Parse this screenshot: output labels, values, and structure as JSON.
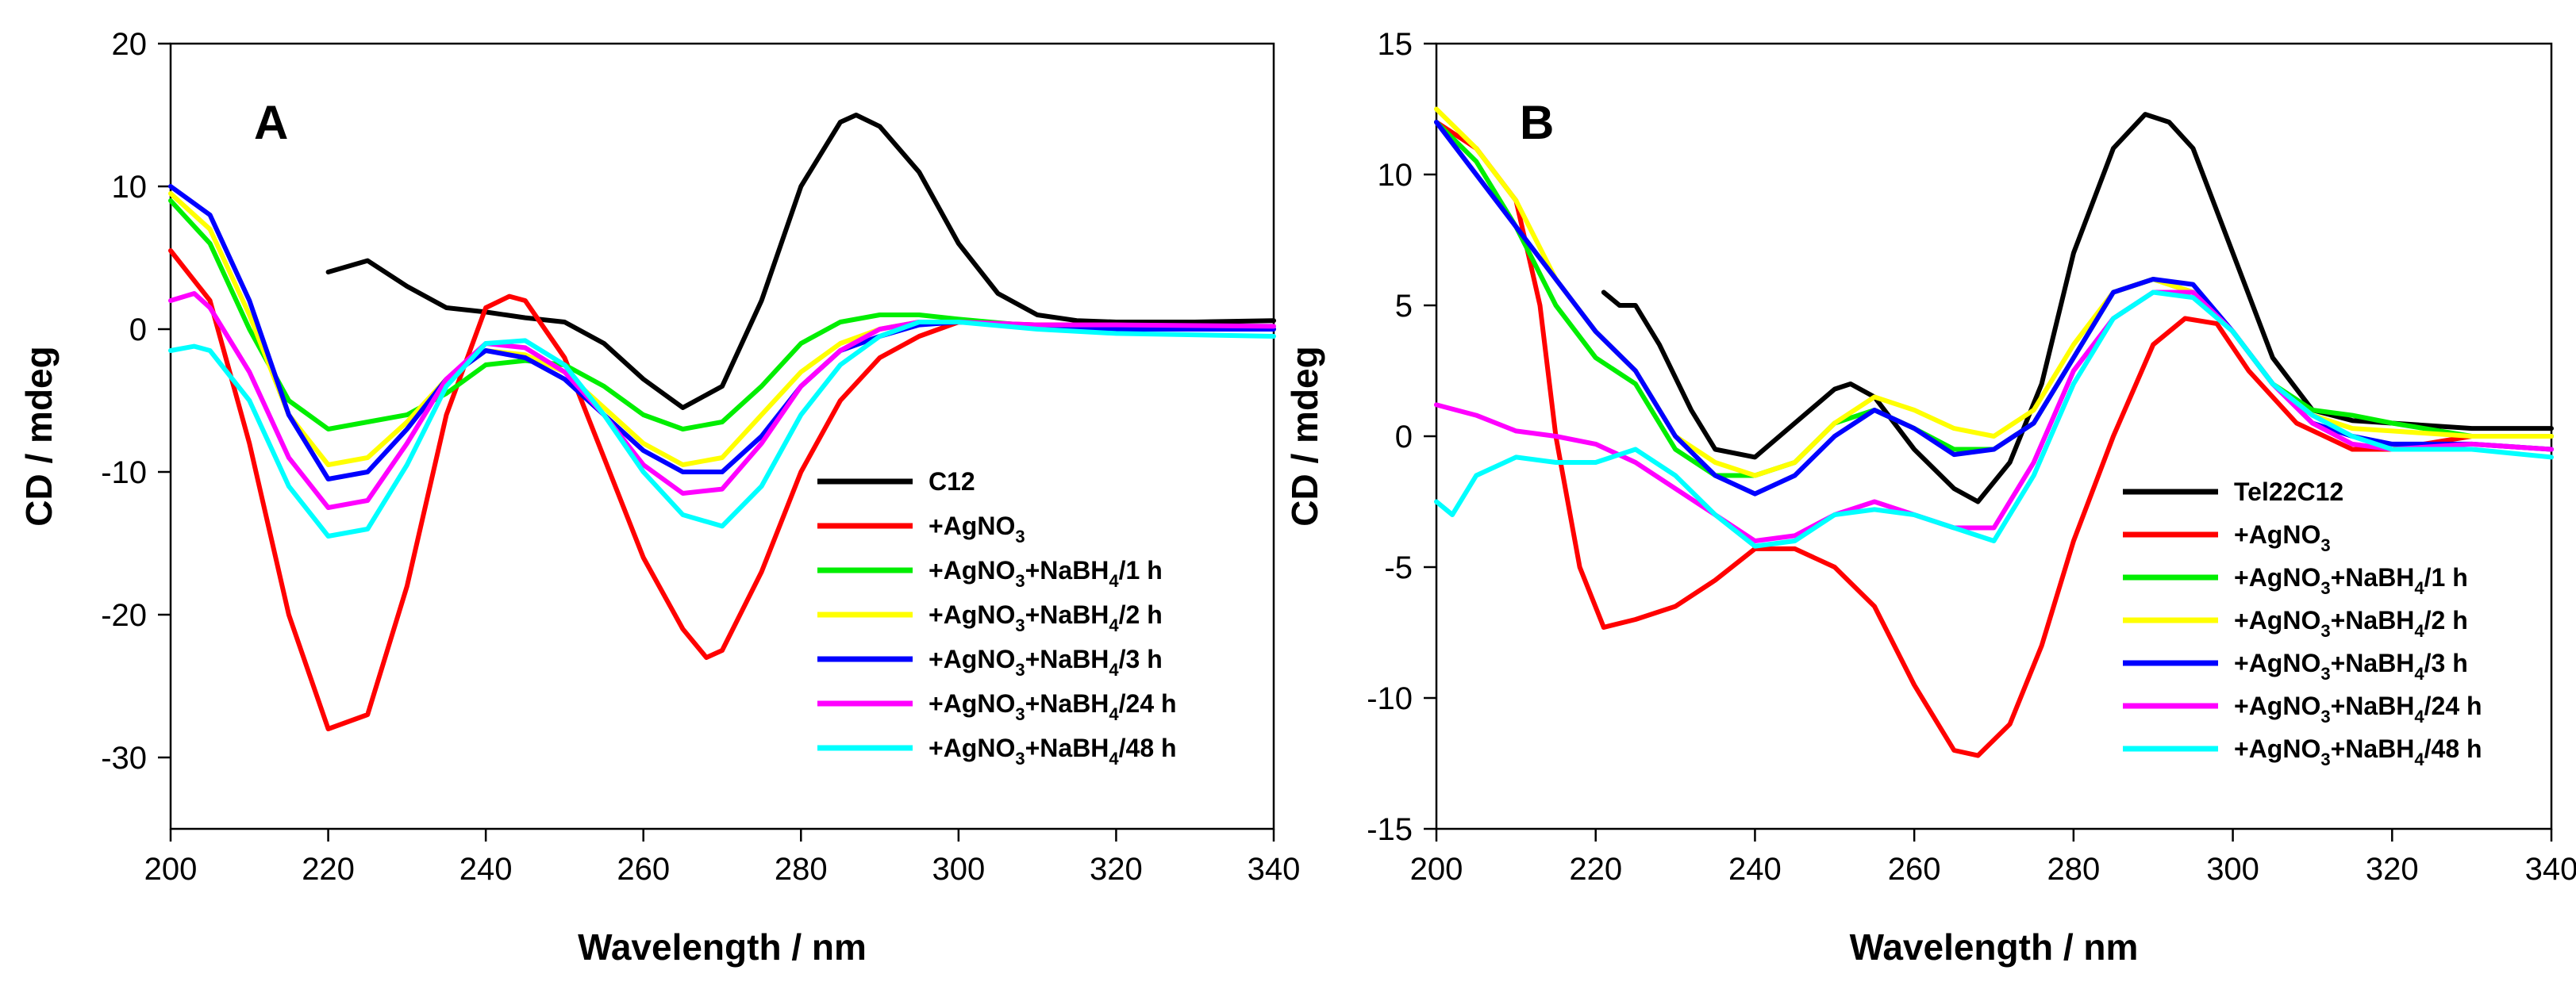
{
  "chart_data": [
    {
      "type": "line",
      "panel_label": "A",
      "xlabel": "Wavelength / nm",
      "ylabel": "CD / mdeg",
      "xlim": [
        200,
        340
      ],
      "ylim": [
        -35,
        20
      ],
      "xticks": [
        200,
        220,
        240,
        260,
        280,
        300,
        320,
        340
      ],
      "yticks": [
        -30,
        -20,
        -10,
        0,
        10,
        20
      ],
      "xtick_labels": [
        "200",
        "220",
        "240",
        "260",
        "280",
        "300",
        "320",
        "340"
      ],
      "ytick_labels": [
        "-30",
        "-20",
        "-10",
        "0",
        "10",
        "20"
      ],
      "legend_position": "lower-right",
      "series": [
        {
          "name": "C12",
          "legend_parts": [
            "C12"
          ],
          "color": "#000000",
          "x": [
            220,
            225,
            230,
            235,
            240,
            245,
            250,
            255,
            260,
            265,
            270,
            275,
            280,
            285,
            287,
            290,
            295,
            300,
            305,
            310,
            315,
            320,
            330,
            340
          ],
          "y": [
            4,
            4.8,
            3,
            1.5,
            1.2,
            0.8,
            0.5,
            -1,
            -3.5,
            -5.5,
            -4,
            2,
            10,
            14.5,
            15,
            14.2,
            11,
            6,
            2.5,
            1,
            0.6,
            0.5,
            0.5,
            0.6
          ]
        },
        {
          "name": "+AgNO3",
          "legend_parts": [
            "+AgNO",
            "3",
            ""
          ],
          "color": "#ff0000",
          "x": [
            200,
            205,
            210,
            215,
            220,
            225,
            230,
            235,
            240,
            243,
            245,
            250,
            255,
            260,
            265,
            268,
            270,
            275,
            280,
            285,
            290,
            295,
            300,
            310,
            320,
            340
          ],
          "y": [
            5.5,
            2,
            -8,
            -20,
            -28,
            -27,
            -18,
            -6,
            1.5,
            2.3,
            2,
            -2,
            -9,
            -16,
            -21,
            -23,
            -22.5,
            -17,
            -10,
            -5,
            -2,
            -0.5,
            0.5,
            0.3,
            0.3,
            0
          ]
        },
        {
          "name": "+AgNO3+NaBH4/1 h",
          "legend_parts": [
            "+AgNO",
            "3",
            "+NaBH",
            "4",
            "/1 h"
          ],
          "color": "#00ee00",
          "x": [
            200,
            205,
            210,
            215,
            220,
            225,
            230,
            235,
            240,
            245,
            250,
            255,
            260,
            265,
            270,
            275,
            280,
            285,
            290,
            295,
            300,
            310,
            320,
            340
          ],
          "y": [
            9,
            6,
            0,
            -5,
            -7,
            -6.5,
            -6,
            -4.5,
            -2.5,
            -2.2,
            -2.5,
            -4,
            -6,
            -7,
            -6.5,
            -4,
            -1,
            0.5,
            1,
            1,
            0.7,
            0.2,
            0,
            0
          ]
        },
        {
          "name": "+AgNO3+NaBH4/2 h",
          "legend_parts": [
            "+AgNO",
            "3",
            "+NaBH",
            "4",
            "/2 h"
          ],
          "color": "#ffff00",
          "x": [
            200,
            205,
            210,
            215,
            220,
            225,
            230,
            235,
            240,
            245,
            250,
            255,
            260,
            265,
            270,
            275,
            280,
            285,
            290,
            295,
            300,
            310,
            320,
            340
          ],
          "y": [
            9.5,
            7,
            1,
            -6,
            -9.5,
            -9,
            -6.5,
            -3.5,
            -1.5,
            -1.8,
            -3,
            -5.5,
            -8,
            -9.5,
            -9,
            -6,
            -3,
            -1,
            0,
            0.5,
            0.5,
            0.2,
            0,
            0
          ]
        },
        {
          "name": "+AgNO3+NaBH4/3 h",
          "legend_parts": [
            "+AgNO",
            "3",
            "+NaBH",
            "4",
            "/3 h"
          ],
          "color": "#0000ff",
          "x": [
            200,
            205,
            210,
            215,
            220,
            225,
            230,
            235,
            240,
            245,
            250,
            255,
            260,
            265,
            270,
            275,
            280,
            285,
            290,
            295,
            300,
            310,
            320,
            340
          ],
          "y": [
            10,
            8,
            2,
            -6,
            -10.5,
            -10,
            -7,
            -3.5,
            -1.5,
            -2,
            -3.5,
            -6,
            -8.5,
            -10,
            -10,
            -7.5,
            -4,
            -1.5,
            -0.5,
            0.3,
            0.5,
            0.2,
            0,
            0
          ]
        },
        {
          "name": "+AgNO3+NaBH4/24 h",
          "legend_parts": [
            "+AgNO",
            "3",
            "+NaBH",
            "4",
            "/24 h"
          ],
          "color": "#ff00ff",
          "x": [
            200,
            203,
            205,
            210,
            215,
            220,
            225,
            230,
            235,
            240,
            245,
            250,
            255,
            260,
            265,
            270,
            275,
            280,
            285,
            290,
            295,
            300,
            310,
            320,
            340
          ],
          "y": [
            2,
            2.5,
            1.5,
            -3,
            -9,
            -12.5,
            -12,
            -8,
            -3.5,
            -1,
            -1.3,
            -3,
            -6,
            -9.5,
            -11.5,
            -11.2,
            -8,
            -4,
            -1.5,
            0,
            0.5,
            0.5,
            0.3,
            0.3,
            0.2
          ]
        },
        {
          "name": "+AgNO3+NaBH4/48 h",
          "legend_parts": [
            "+AgNO",
            "3",
            "+NaBH",
            "4",
            "/48 h"
          ],
          "color": "#00ffff",
          "x": [
            200,
            203,
            205,
            210,
            215,
            220,
            225,
            230,
            235,
            240,
            245,
            250,
            255,
            260,
            265,
            270,
            275,
            280,
            285,
            290,
            295,
            300,
            310,
            320,
            340
          ],
          "y": [
            -1.5,
            -1.2,
            -1.5,
            -5,
            -11,
            -14.5,
            -14,
            -9.5,
            -4,
            -1,
            -0.8,
            -2.5,
            -6,
            -10,
            -13,
            -13.8,
            -11,
            -6,
            -2.5,
            -0.5,
            0.5,
            0.5,
            0,
            -0.3,
            -0.5
          ]
        }
      ]
    },
    {
      "type": "line",
      "panel_label": "B",
      "xlabel": "Wavelength / nm",
      "ylabel": "CD / mdeg",
      "xlim": [
        200,
        340
      ],
      "ylim": [
        -15,
        15
      ],
      "xticks": [
        200,
        220,
        240,
        260,
        280,
        300,
        320,
        340
      ],
      "yticks": [
        -15,
        -10,
        -5,
        0,
        5,
        10,
        15
      ],
      "xtick_labels": [
        "200",
        "220",
        "240",
        "260",
        "280",
        "300",
        "320",
        "340"
      ],
      "ytick_labels": [
        "-15",
        "-10",
        "-5",
        "0",
        "5",
        "10",
        "15"
      ],
      "legend_position": "lower-right",
      "series": [
        {
          "name": "Tel22C12",
          "legend_parts": [
            "Tel22C12"
          ],
          "color": "#000000",
          "x": [
            221,
            223,
            225,
            228,
            232,
            235,
            240,
            245,
            250,
            252,
            255,
            260,
            265,
            268,
            272,
            276,
            280,
            285,
            289,
            292,
            295,
            300,
            305,
            310,
            315,
            320,
            330,
            340
          ],
          "y": [
            5.5,
            5,
            5,
            3.5,
            1,
            -0.5,
            -0.8,
            0.5,
            1.8,
            2,
            1.5,
            -0.5,
            -2,
            -2.5,
            -1,
            2,
            7,
            11,
            12.3,
            12,
            11,
            7,
            3,
            1,
            0.6,
            0.5,
            0.3,
            0.3
          ]
        },
        {
          "name": "+AgNO3",
          "legend_parts": [
            "+AgNO",
            "3",
            ""
          ],
          "color": "#ff0000",
          "x": [
            200,
            205,
            210,
            213,
            215,
            218,
            221,
            225,
            230,
            235,
            240,
            245,
            250,
            255,
            260,
            265,
            268,
            272,
            276,
            280,
            285,
            290,
            294,
            298,
            302,
            308,
            315,
            320,
            330,
            340
          ],
          "y": [
            12,
            11,
            9,
            5,
            0,
            -5,
            -7.3,
            -7,
            -6.5,
            -5.5,
            -4.3,
            -4.3,
            -5,
            -6.5,
            -9.5,
            -12,
            -12.2,
            -11,
            -8,
            -4,
            0,
            3.5,
            4.5,
            4.3,
            2.5,
            0.5,
            -0.5,
            -0.5,
            0,
            0
          ]
        },
        {
          "name": "+AgNO3+NaBH4/1 h",
          "legend_parts": [
            "+AgNO",
            "3",
            "+NaBH",
            "4",
            "/1 h"
          ],
          "color": "#00ee00",
          "x": [
            200,
            205,
            210,
            215,
            220,
            225,
            230,
            235,
            240,
            245,
            250,
            255,
            260,
            265,
            270,
            275,
            280,
            285,
            290,
            295,
            300,
            305,
            310,
            315,
            320,
            330,
            340
          ],
          "y": [
            12,
            10.5,
            8,
            5,
            3,
            2,
            -0.5,
            -1.5,
            -1.5,
            -1,
            0.5,
            1,
            0.3,
            -0.5,
            -0.5,
            0.5,
            3,
            5.5,
            6,
            5.5,
            4,
            2,
            1,
            0.8,
            0.5,
            0,
            0
          ]
        },
        {
          "name": "+AgNO3+NaBH4/2 h",
          "legend_parts": [
            "+AgNO",
            "3",
            "+NaBH",
            "4",
            "/2 h"
          ],
          "color": "#ffff00",
          "x": [
            200,
            205,
            210,
            215,
            220,
            225,
            230,
            235,
            240,
            245,
            250,
            255,
            260,
            265,
            270,
            275,
            280,
            285,
            290,
            295,
            300,
            305,
            310,
            315,
            320,
            330,
            340
          ],
          "y": [
            12.5,
            11,
            9,
            6,
            4,
            2.5,
            0,
            -1,
            -1.5,
            -1,
            0.5,
            1.5,
            1,
            0.3,
            0,
            1,
            3.5,
            5.5,
            6,
            5.5,
            4,
            2,
            0.8,
            0.3,
            0.2,
            0,
            0
          ]
        },
        {
          "name": "+AgNO3+NaBH4/3 h",
          "legend_parts": [
            "+AgNO",
            "3",
            "+NaBH",
            "4",
            "/3 h"
          ],
          "color": "#0000ff",
          "x": [
            200,
            205,
            210,
            215,
            220,
            225,
            230,
            235,
            240,
            245,
            250,
            255,
            260,
            265,
            270,
            275,
            280,
            285,
            290,
            295,
            300,
            305,
            310,
            315,
            320,
            330,
            340
          ],
          "y": [
            12,
            10,
            8,
            6,
            4,
            2.5,
            0,
            -1.5,
            -2.2,
            -1.5,
            0,
            1,
            0.3,
            -0.7,
            -0.5,
            0.5,
            3,
            5.5,
            6,
            5.8,
            4,
            2,
            0.5,
            0,
            -0.3,
            -0.3,
            -0.5
          ]
        },
        {
          "name": "+AgNO3+NaBH4/24 h",
          "legend_parts": [
            "+AgNO",
            "3",
            "+NaBH",
            "4",
            "/24 h"
          ],
          "color": "#ff00ff",
          "x": [
            200,
            205,
            210,
            215,
            220,
            225,
            230,
            235,
            240,
            245,
            250,
            255,
            260,
            265,
            270,
            275,
            280,
            285,
            290,
            295,
            300,
            305,
            310,
            315,
            320,
            330,
            340
          ],
          "y": [
            1.2,
            0.8,
            0.2,
            0,
            -0.3,
            -1,
            -2,
            -3,
            -4,
            -3.8,
            -3,
            -2.5,
            -3,
            -3.5,
            -3.5,
            -1,
            2.5,
            4.5,
            5.5,
            5.5,
            4,
            2,
            0.5,
            -0.3,
            -0.5,
            -0.3,
            -0.5
          ]
        },
        {
          "name": "+AgNO3+NaBH4/48 h",
          "legend_parts": [
            "+AgNO",
            "3",
            "+NaBH",
            "4",
            "/48 h"
          ],
          "color": "#00ffff",
          "x": [
            200,
            202,
            205,
            210,
            215,
            220,
            225,
            230,
            235,
            240,
            245,
            250,
            255,
            260,
            265,
            270,
            275,
            280,
            285,
            290,
            295,
            300,
            305,
            310,
            315,
            320,
            330,
            340
          ],
          "y": [
            -2.5,
            -3,
            -1.5,
            -0.8,
            -1,
            -1,
            -0.5,
            -1.5,
            -3,
            -4.2,
            -4,
            -3,
            -2.8,
            -3,
            -3.5,
            -4,
            -1.5,
            2,
            4.5,
            5.5,
            5.3,
            4,
            2,
            0.8,
            0,
            -0.5,
            -0.5,
            -0.8
          ]
        }
      ]
    }
  ]
}
